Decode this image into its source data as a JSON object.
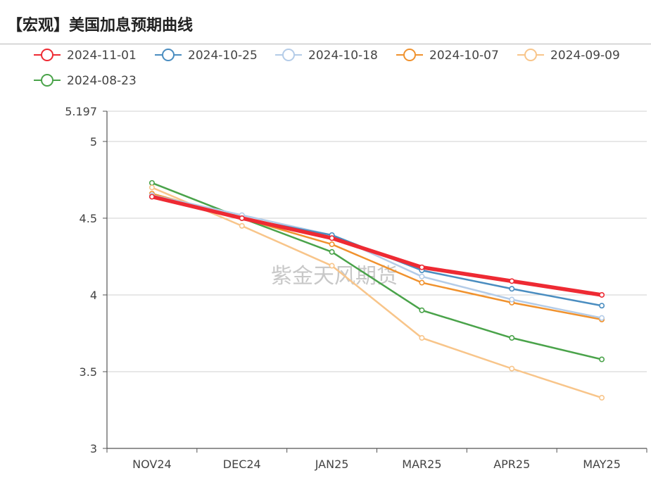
{
  "page": {
    "title": "【宏观】美国加息预期曲线"
  },
  "watermark": "紫金天风期货",
  "chart_data": {
    "type": "line",
    "title": "【宏观】美国加息预期曲线",
    "xlabel": "",
    "ylabel": "",
    "categories": [
      "NOV24",
      "DEC24",
      "JAN25",
      "MAR25",
      "APR25",
      "MAY25"
    ],
    "ylim": [
      3,
      5.197
    ],
    "yticks": [
      "3",
      "3.5",
      "4",
      "4.5",
      "5",
      "5.197"
    ],
    "grid": true,
    "legend_position": "top-left",
    "series": [
      {
        "name": "2024-08-23",
        "color": "#4aa34a",
        "width": 2.5,
        "values": [
          4.73,
          4.5,
          4.28,
          3.9,
          3.72,
          3.58
        ]
      },
      {
        "name": "2024-09-09",
        "color": "#f8c58a",
        "width": 2.5,
        "values": [
          4.7,
          4.45,
          4.19,
          3.72,
          3.52,
          3.33
        ]
      },
      {
        "name": "2024-10-07",
        "color": "#f0922e",
        "width": 2.5,
        "values": [
          4.66,
          4.5,
          4.33,
          4.08,
          3.95,
          3.84
        ]
      },
      {
        "name": "2024-10-18",
        "color": "#b4cce8",
        "width": 2.5,
        "values": [
          4.65,
          4.52,
          4.39,
          4.12,
          3.97,
          3.85
        ]
      },
      {
        "name": "2024-10-25",
        "color": "#4a8dc0",
        "width": 2.5,
        "values": [
          4.64,
          4.5,
          4.39,
          4.16,
          4.04,
          3.93
        ]
      },
      {
        "name": "2024-11-01",
        "color": "#ee2a33",
        "width": 5.5,
        "values": [
          4.64,
          4.5,
          4.37,
          4.18,
          4.09,
          4.0
        ]
      }
    ]
  }
}
